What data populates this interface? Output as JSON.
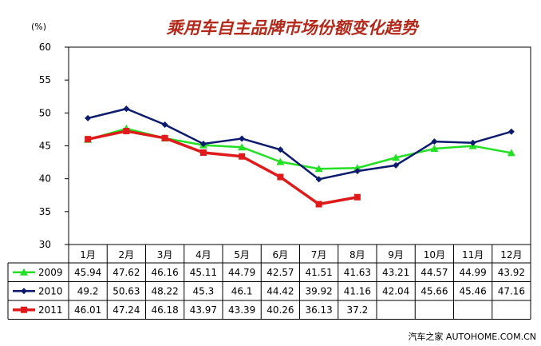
{
  "chart_data": {
    "type": "line",
    "title": "乘用车自主品牌市场份额变化趋势",
    "unit_label": "(%)",
    "ylim": [
      30,
      60
    ],
    "yticks": [
      30,
      35,
      40,
      45,
      50,
      55,
      60
    ],
    "grid": false,
    "categories": [
      "1月",
      "2月",
      "3月",
      "4月",
      "5月",
      "6月",
      "7月",
      "8月",
      "9月",
      "10月",
      "11月",
      "12月"
    ],
    "series": [
      {
        "name": "2009",
        "color": "#22e022",
        "marker": "triangle",
        "values": [
          45.94,
          47.62,
          46.16,
          45.11,
          44.79,
          42.57,
          41.51,
          41.63,
          43.21,
          44.57,
          44.99,
          43.92
        ],
        "labels": [
          "45.94",
          "47.62",
          "46.16",
          "45.11",
          "44.79",
          "42.57",
          "41.51",
          "41.63",
          "43.21",
          "44.57",
          "44.99",
          "43.92"
        ]
      },
      {
        "name": "2010",
        "color": "#0a1a6e",
        "marker": "diamond",
        "values": [
          49.2,
          50.63,
          48.22,
          45.3,
          46.1,
          44.42,
          39.92,
          41.16,
          42.04,
          45.66,
          45.46,
          47.16
        ],
        "labels": [
          "49.2",
          "50.63",
          "48.22",
          "45.3",
          "46.1",
          "44.42",
          "39.92",
          "41.16",
          "42.04",
          "45.66",
          "45.46",
          "47.16"
        ]
      },
      {
        "name": "2011",
        "color": "#e01a1a",
        "marker": "square",
        "values": [
          46.01,
          47.24,
          46.18,
          43.97,
          43.39,
          40.26,
          36.13,
          37.2,
          null,
          null,
          null,
          null
        ],
        "labels": [
          "46.01",
          "47.24",
          "46.18",
          "43.97",
          "43.39",
          "40.26",
          "36.13",
          "37.2",
          "",
          "",
          "",
          ""
        ]
      }
    ],
    "title_color": "#b5291a"
  },
  "watermark": "汽车之家  AUTOHOME.COM.CN"
}
